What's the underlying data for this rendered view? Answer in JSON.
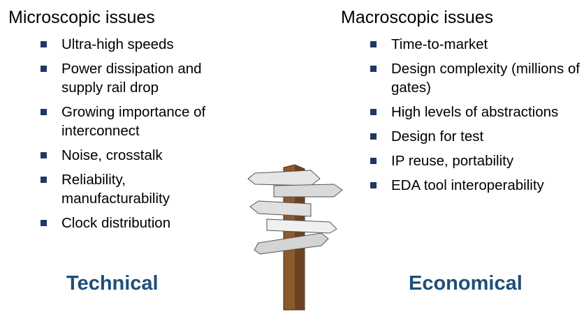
{
  "left": {
    "heading": "Microscopic issues",
    "items": [
      "Ultra-high speeds",
      "Power dissipation and supply rail drop",
      "Growing importance of interconnect",
      "Noise, crosstalk",
      "Reliability, manufacturability",
      "Clock distribution"
    ],
    "label": "Technical"
  },
  "right": {
    "heading": "Macroscopic issues",
    "items": [
      "Time-to-market",
      "Design complexity (millions of gates)",
      "High levels of abstractions",
      "Design for test",
      "IP reuse, portability",
      "EDA tool interoperability"
    ],
    "label": "Economical"
  },
  "colors": {
    "bullet": "#1f3864",
    "label": "#1f4e79",
    "post": "#8b5a2b",
    "signs": "#d9d9d9"
  },
  "graphic": "signpost"
}
